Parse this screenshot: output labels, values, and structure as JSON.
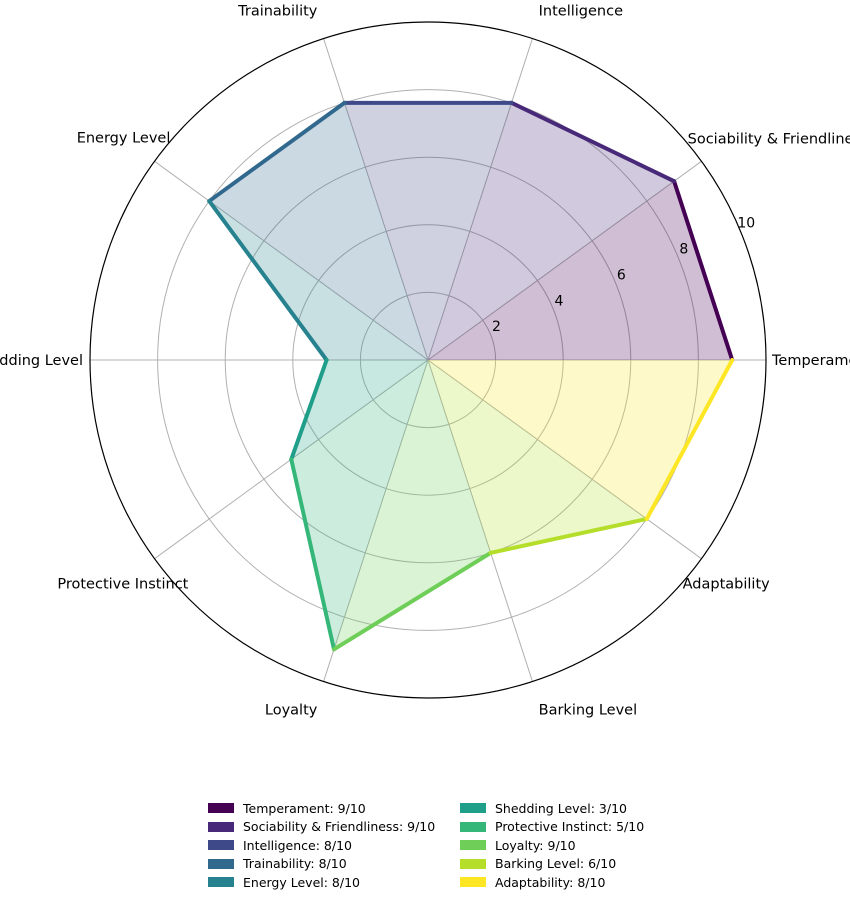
{
  "chart_data": {
    "type": "radar",
    "categories": [
      "Temperament",
      "Sociability & Friendliness",
      "Intelligence",
      "Trainability",
      "Energy Level",
      "Shedding Level",
      "Protective Instinct",
      "Loyalty",
      "Barking Level",
      "Adaptability"
    ],
    "values": [
      9,
      9,
      8,
      8,
      8,
      3,
      5,
      9,
      6,
      8
    ],
    "colors": [
      "#440154",
      "#482878",
      "#3e4989",
      "#31688e",
      "#26828e",
      "#1f9e89",
      "#35b779",
      "#6ece58",
      "#b5de2b",
      "#fde725"
    ],
    "rlim": [
      0,
      10
    ],
    "rticks": [
      "2",
      "4",
      "6",
      "8",
      "10"
    ],
    "legend": [
      "Temperament: 9/10",
      "Sociability & Friendliness: 9/10",
      "Intelligence: 8/10",
      "Trainability: 8/10",
      "Energy Level: 8/10",
      "Shedding Level: 3/10",
      "Protective Instinct: 5/10",
      "Loyalty: 9/10",
      "Barking Level: 6/10",
      "Adaptability: 8/10"
    ],
    "legend_position": "bottom-center"
  }
}
